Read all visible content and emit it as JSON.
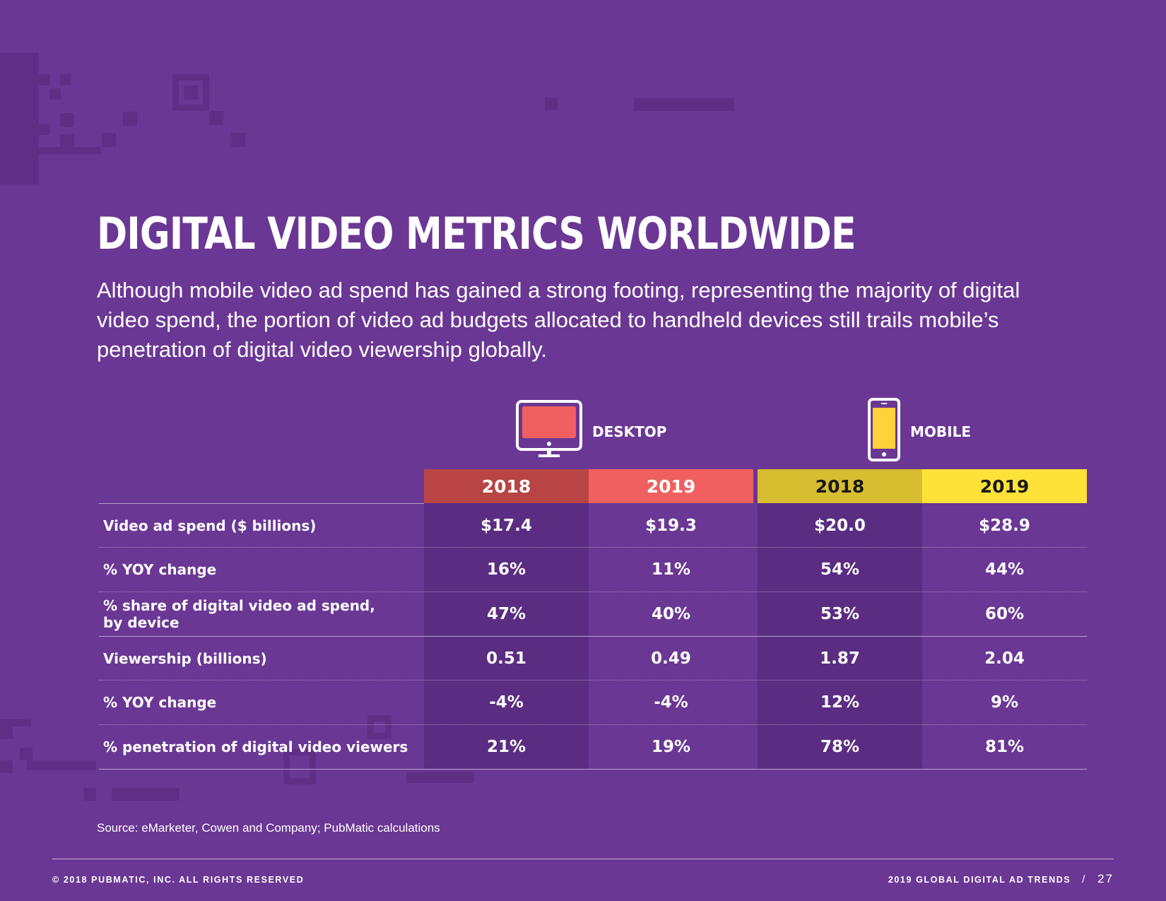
{
  "title": "DIGITAL VIDEO METRICS WORLDWIDE",
  "intro": "Although mobile video ad spend has gained a strong footing, representing the majority of digital video spend, the portion of video ad budgets allocated to handheld devices still trails mobile’s penetration of digital video viewership globally.",
  "devices": [
    {
      "label": "DESKTOP",
      "icon": "desktop-monitor-icon",
      "color": "#f06060"
    },
    {
      "label": "MOBILE",
      "icon": "mobile-phone-icon",
      "color": "#ffd23c"
    }
  ],
  "years": [
    {
      "label": "2018",
      "bg": "#b84444",
      "fg": "#ffffff"
    },
    {
      "label": "2019",
      "bg": "#f06060",
      "fg": "#ffffff"
    },
    {
      "label": "2018",
      "bg": "#d7bd30",
      "fg": "#1a1a1a"
    },
    {
      "label": "2019",
      "bg": "#ffe238",
      "fg": "#1a1a1a"
    }
  ],
  "rows": [
    {
      "label": "Video ad spend ($ billions)",
      "values": [
        "$17.4",
        "$19.3",
        "$20.0",
        "$28.9"
      ]
    },
    {
      "label": "% YOY change",
      "values": [
        "16%",
        "11%",
        "54%",
        "44%"
      ]
    },
    {
      "label": "% share of digital video ad spend,\nby device",
      "values": [
        "47%",
        "40%",
        "53%",
        "60%"
      ]
    },
    {
      "label": "Viewership (billions)",
      "values": [
        "0.51",
        "0.49",
        "1.87",
        "2.04"
      ]
    },
    {
      "label": "% YOY change",
      "values": [
        "-4%",
        "-4%",
        "12%",
        "9%"
      ]
    },
    {
      "label": "% penetration of digital video viewers",
      "values": [
        "21%",
        "19%",
        "78%",
        "81%"
      ]
    }
  ],
  "source": "Source: eMarketer, Cowen and Company; PubMatic calculations",
  "footer": {
    "left": "© 2018 PUBMATIC, INC. ALL RIGHTS RESERVED",
    "right": "2019 GLOBAL DIGITAL AD TRENDS",
    "page": "27"
  }
}
